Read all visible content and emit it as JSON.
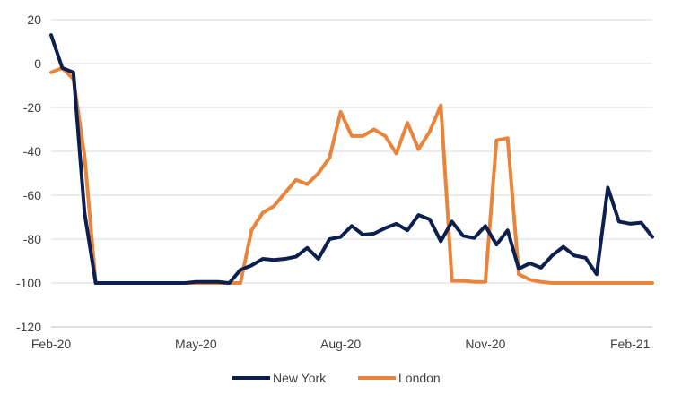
{
  "chart_data": {
    "type": "line",
    "title": "",
    "xlabel": "",
    "ylabel": "",
    "ylim": [
      -120,
      20
    ],
    "yticks": [
      20,
      0,
      -20,
      -40,
      -60,
      -80,
      -100,
      -120
    ],
    "xticks": [
      "Feb-20",
      "May-20",
      "Aug-20",
      "Nov-20",
      "Feb-21"
    ],
    "grid": "horizontal",
    "legend_position": "bottom",
    "series": [
      {
        "name": "New York",
        "color": "#0d1f4f",
        "values": [
          13,
          -2,
          -4,
          -68,
          -100,
          -100,
          -100,
          -100,
          -100,
          -100,
          -100,
          -100,
          -100,
          -99.5,
          -99.5,
          -99.5,
          -100,
          -94,
          -92,
          -89,
          -89.5,
          -89,
          -88,
          -84,
          -89,
          -80,
          -79,
          -74,
          -78,
          -77.5,
          -75,
          -73,
          -76,
          -69,
          -71,
          -81,
          -72,
          -78.5,
          -79.5,
          -74,
          -82.5,
          -76,
          -93.5,
          -91,
          -93,
          -87.5,
          -83.5,
          -87.5,
          -88.5,
          -96,
          -56.5,
          -72,
          -73,
          -72.5,
          -79
        ]
      },
      {
        "name": "London",
        "color": "#e8843c",
        "values": [
          -4,
          -2,
          -7,
          -42,
          -100,
          -100,
          -100,
          -100,
          -100,
          -100,
          -100,
          -100,
          -100,
          -100,
          -100,
          -100,
          -100,
          -100,
          -76,
          -68,
          -65,
          -59,
          -53,
          -55,
          -50,
          -43,
          -22,
          -33,
          -33,
          -30,
          -33,
          -41,
          -27,
          -39,
          -31,
          -19,
          -99,
          -99,
          -99.5,
          -99.5,
          -35,
          -34,
          -96,
          -98.5,
          -99.5,
          -100,
          -100,
          -100,
          -100,
          -100,
          -100,
          -100,
          -100,
          -100,
          -100
        ]
      }
    ]
  }
}
